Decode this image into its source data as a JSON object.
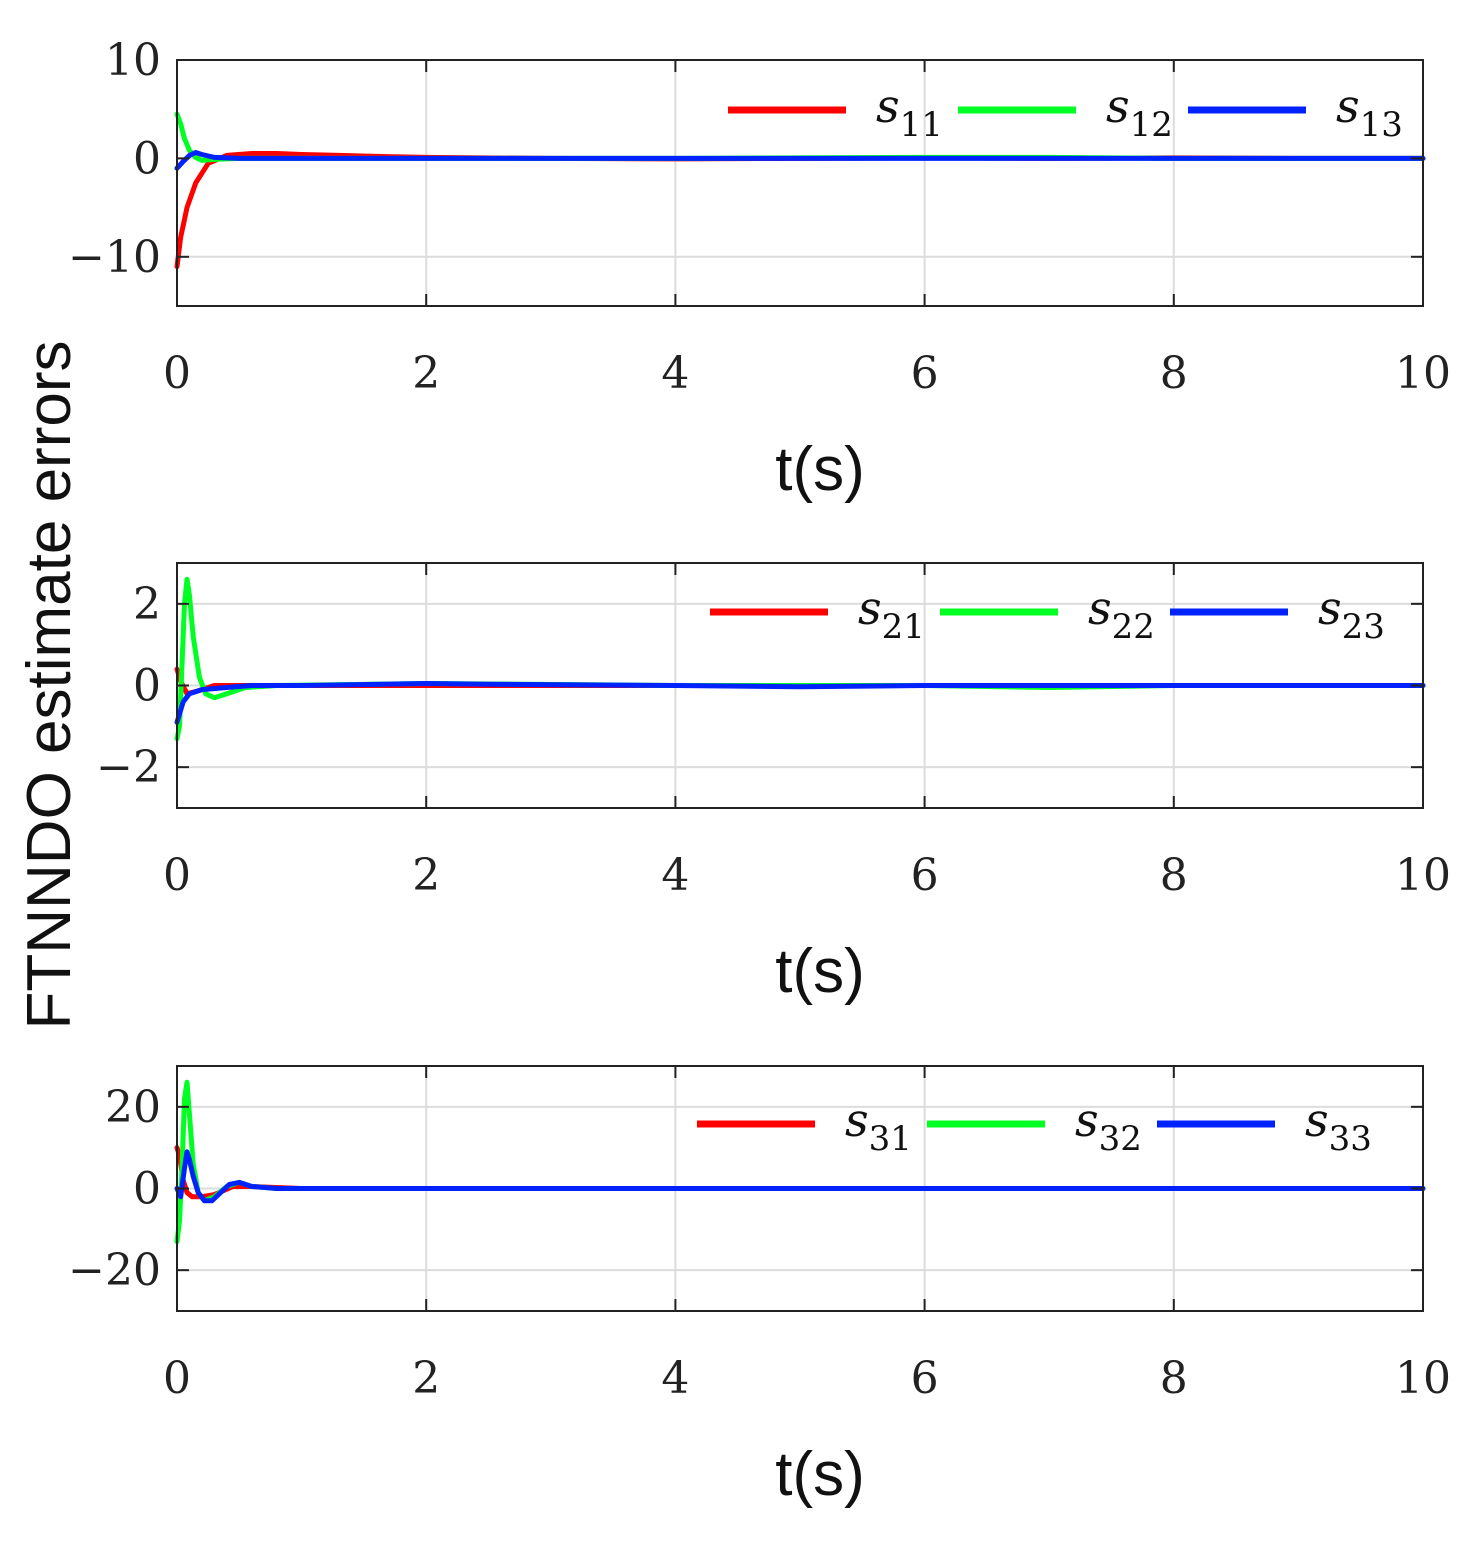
{
  "figure": {
    "ylabel": "FTNNDO estimate errors"
  },
  "chart_data": [
    {
      "type": "line",
      "xlabel": "t(s)",
      "xlim": [
        0,
        10
      ],
      "ylim": [
        -15,
        10
      ],
      "xticks": [
        "0",
        "2",
        "4",
        "6",
        "8",
        "10"
      ],
      "yticks": [
        {
          "value": 10,
          "label": "10"
        },
        {
          "value": 0,
          "label": "0"
        },
        {
          "value": -10,
          "label": "−10"
        }
      ],
      "grid": true,
      "legend_position": "top-right",
      "series": [
        {
          "name": "s",
          "sub": "11",
          "color": "#ff0000",
          "x": [
            0,
            0.03,
            0.08,
            0.15,
            0.25,
            0.4,
            0.6,
            0.8,
            1.0,
            1.3,
            1.6,
            2.0,
            3.0,
            4.0,
            5.0,
            6.0,
            7.0,
            8.0,
            9.0,
            10.0
          ],
          "y": [
            -11,
            -8,
            -5,
            -2.5,
            -0.5,
            0.3,
            0.5,
            0.5,
            0.4,
            0.3,
            0.2,
            0.1,
            0.0,
            -0.05,
            0.0,
            0.05,
            0.0,
            0.05,
            0.0,
            0.0
          ]
        },
        {
          "name": "s",
          "sub": "12",
          "color": "#00ff22",
          "x": [
            0,
            0.03,
            0.06,
            0.1,
            0.15,
            0.2,
            0.3,
            0.5,
            1.0,
            2.0,
            4.0,
            6.0,
            7.0,
            8.0,
            10.0
          ],
          "y": [
            4.5,
            3.5,
            2,
            0.8,
            0.1,
            -0.2,
            -0.1,
            0.0,
            0.0,
            0.0,
            0.0,
            0.1,
            0.1,
            0.0,
            0.0
          ]
        },
        {
          "name": "s",
          "sub": "13",
          "color": "#0022ff",
          "x": [
            0,
            0.05,
            0.1,
            0.15,
            0.2,
            0.3,
            0.5,
            1.0,
            2.0,
            4.0,
            6.0,
            8.0,
            10.0
          ],
          "y": [
            -1,
            -0.3,
            0.3,
            0.6,
            0.4,
            0.1,
            0.0,
            0.0,
            0.0,
            0.0,
            0.0,
            0.0,
            0.0
          ]
        }
      ]
    },
    {
      "type": "line",
      "xlabel": "t(s)",
      "xlim": [
        0,
        10
      ],
      "ylim": [
        -3,
        3
      ],
      "xticks": [
        "0",
        "2",
        "4",
        "6",
        "8",
        "10"
      ],
      "yticks": [
        {
          "value": 2,
          "label": "2"
        },
        {
          "value": 0,
          "label": "0"
        },
        {
          "value": -2,
          "label": "−2"
        }
      ],
      "grid": true,
      "legend_position": "top-right",
      "series": [
        {
          "name": "s",
          "sub": "21",
          "color": "#ff0000",
          "x": [
            0,
            0.03,
            0.08,
            0.15,
            0.3,
            0.5,
            1.0,
            2.0,
            4.0,
            6.0,
            8.0,
            10.0
          ],
          "y": [
            0.4,
            0.1,
            -0.2,
            -0.15,
            0.0,
            0.0,
            0.0,
            0.0,
            0.0,
            0.0,
            0.0,
            0.0
          ]
        },
        {
          "name": "s",
          "sub": "22",
          "color": "#00ff22",
          "x": [
            0,
            0.02,
            0.04,
            0.06,
            0.08,
            0.1,
            0.13,
            0.18,
            0.23,
            0.3,
            0.4,
            0.55,
            0.8,
            2.0,
            4.0,
            6.0,
            7.0,
            8.0,
            10.0
          ],
          "y": [
            -1.3,
            -1.0,
            0.5,
            2.0,
            2.6,
            2.2,
            1.2,
            0.2,
            -0.2,
            -0.3,
            -0.2,
            -0.05,
            0.0,
            0.05,
            0.0,
            0.0,
            -0.05,
            0.0,
            0.0
          ]
        },
        {
          "name": "s",
          "sub": "23",
          "color": "#0022ff",
          "x": [
            0,
            0.05,
            0.1,
            0.2,
            0.4,
            0.6,
            1.0,
            2.0,
            2.5,
            4.0,
            5.0,
            6.0,
            8.0,
            10.0
          ],
          "y": [
            -0.9,
            -0.4,
            -0.2,
            -0.1,
            -0.05,
            0.0,
            0.0,
            0.05,
            0.03,
            0.0,
            -0.03,
            0.0,
            0.0,
            0.0
          ]
        }
      ]
    },
    {
      "type": "line",
      "xlabel": "t(s)",
      "xlim": [
        0,
        10
      ],
      "ylim": [
        -30,
        30
      ],
      "xticks": [
        "0",
        "2",
        "4",
        "6",
        "8",
        "10"
      ],
      "yticks": [
        {
          "value": 20,
          "label": "20"
        },
        {
          "value": 0,
          "label": "0"
        },
        {
          "value": -20,
          "label": "−20"
        }
      ],
      "grid": true,
      "legend_position": "top-right",
      "series": [
        {
          "name": "s",
          "sub": "31",
          "color": "#ff0000",
          "x": [
            0,
            0.02,
            0.05,
            0.08,
            0.12,
            0.2,
            0.3,
            0.45,
            0.6,
            1.0,
            2.0,
            4.0,
            6.0,
            8.0,
            10.0
          ],
          "y": [
            10,
            8,
            2,
            -1,
            -2,
            -2,
            -1.5,
            0.5,
            0.5,
            0.0,
            0.0,
            0.0,
            0.0,
            0.0,
            0.0
          ]
        },
        {
          "name": "s",
          "sub": "32",
          "color": "#00ff22",
          "x": [
            0,
            0.02,
            0.04,
            0.06,
            0.08,
            0.1,
            0.13,
            0.17,
            0.22,
            0.3,
            0.4,
            0.5,
            0.6,
            0.8,
            1.0,
            2.0,
            4.0,
            6.0,
            8.0,
            10.0
          ],
          "y": [
            -13,
            -8,
            5,
            22,
            26,
            18,
            6,
            -1,
            -3,
            -2,
            0.5,
            1.5,
            0.5,
            0.0,
            0.0,
            0.0,
            0.0,
            0.0,
            0.0,
            0.0
          ]
        },
        {
          "name": "s",
          "sub": "33",
          "color": "#0022ff",
          "x": [
            0,
            0.03,
            0.06,
            0.08,
            0.1,
            0.13,
            0.17,
            0.22,
            0.28,
            0.35,
            0.42,
            0.5,
            0.6,
            0.8,
            1.0,
            2.0,
            4.0,
            6.0,
            8.0,
            10.0
          ],
          "y": [
            0,
            -2,
            5,
            9,
            7,
            3,
            -1,
            -3,
            -3,
            -1,
            1,
            1.5,
            0.5,
            0.0,
            0.0,
            0.0,
            0.0,
            0.0,
            0.0,
            0.0
          ]
        }
      ]
    }
  ]
}
